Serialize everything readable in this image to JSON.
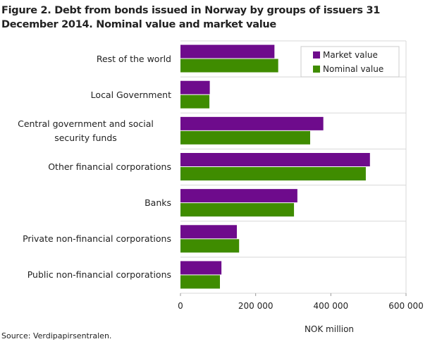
{
  "chart_data": {
    "type": "hbar",
    "title": "Figure 2. Debt from bonds issued in Norway by groups of issuers 31 December 2014. Nominal value and market value",
    "categories": [
      "Rest of the world",
      "Local Government",
      "Central government and social security funds",
      "Other financial corporations",
      "Banks",
      "Private non-financial corporations",
      "Public non-financial corporations"
    ],
    "series": [
      {
        "name": "Market value",
        "color": "#6e0b8c",
        "values": [
          250000,
          78000,
          380000,
          504000,
          311000,
          150000,
          109000
        ]
      },
      {
        "name": "Nominal value",
        "color": "#3f8c00",
        "values": [
          260000,
          77000,
          345000,
          493000,
          302000,
          156000,
          105000
        ]
      }
    ],
    "xlim": [
      0,
      600000
    ],
    "xticks": [
      0,
      {
        "value": 200000,
        "label": "200 000"
      },
      {
        "value": 400000,
        "label": "400 000"
      },
      {
        "value": 600000,
        "label": "600 000"
      }
    ],
    "xlabel": "NOK million",
    "source": "Source: Verdipapirsentralen.",
    "legend": "upper right"
  }
}
